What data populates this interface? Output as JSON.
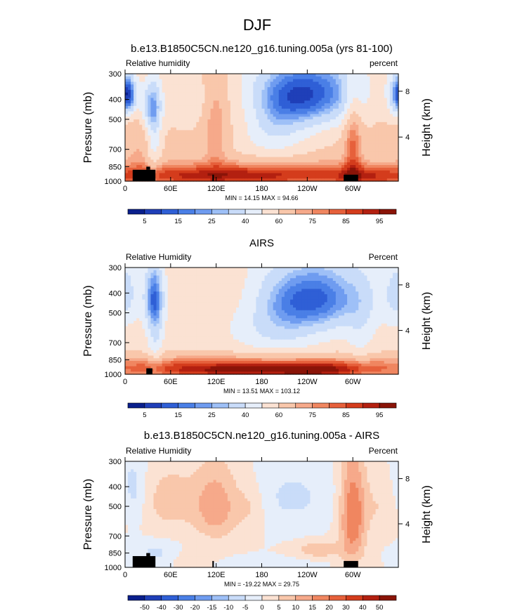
{
  "figure": {
    "title": "DJF"
  },
  "chart_data": [
    {
      "type": "contour",
      "title": "b.e13.B1850C5CN.ne120_g16.tuning.005a (yrs 81-100)",
      "left_label": "Relative humidity",
      "right_label": "percent",
      "ylabel": "Pressure (mb)",
      "ylabel_right": "Height (km)",
      "xlabel": "",
      "x_ticks": [
        "0",
        "60E",
        "120E",
        "180",
        "120W",
        "60W"
      ],
      "x_tick_lons": [
        0,
        60,
        120,
        180,
        240,
        300
      ],
      "xlim": [
        0,
        360
      ],
      "y_ticks": [
        "300",
        "400",
        "500",
        "700",
        "850",
        "1000"
      ],
      "y_tick_values": [
        300,
        400,
        500,
        700,
        850,
        1000
      ],
      "ylim": [
        1000,
        300
      ],
      "height_ticks": [
        "8",
        "4"
      ],
      "height_tick_pressures": [
        365,
        610
      ],
      "stats": "MIN = 14.15  MAX = 94.66",
      "min": 14.15,
      "max": 94.66,
      "colorbar": {
        "labels": [
          "5",
          "15",
          "25",
          "40",
          "60",
          "75",
          "85",
          "95"
        ],
        "label_positions": [
          1,
          3,
          5,
          7,
          9,
          11,
          13,
          15
        ],
        "colors": [
          "#0a1f8c",
          "#1f3fb8",
          "#2f5fd6",
          "#4a7fe6",
          "#6f9cf0",
          "#9ec0f7",
          "#c9dcf9",
          "#e6eefa",
          "#fbe2d3",
          "#f9c7ab",
          "#f6a98a",
          "#f08660",
          "#e6603b",
          "#d43c1c",
          "#b32010",
          "#8a1408"
        ]
      },
      "field": {
        "base": 62,
        "blobs": [
          {
            "lon": 5,
            "p": 380,
            "sx": 8,
            "sp": 60,
            "a": -28
          },
          {
            "lon": 35,
            "p": 430,
            "sx": 10,
            "sp": 90,
            "a": -32
          },
          {
            "lon": 38,
            "p": 640,
            "sx": 7,
            "sp": 200,
            "a": -18
          },
          {
            "lon": 20,
            "p": 650,
            "sx": 14,
            "sp": 200,
            "a": 8
          },
          {
            "lon": 80,
            "p": 400,
            "sx": 20,
            "sp": 90,
            "a": -10
          },
          {
            "lon": 120,
            "p": 520,
            "sx": 12,
            "sp": 220,
            "a": 16
          },
          {
            "lon": 160,
            "p": 450,
            "sx": 20,
            "sp": 100,
            "a": 8
          },
          {
            "lon": 240,
            "p": 370,
            "sx": 55,
            "sp": 110,
            "a": -50
          },
          {
            "lon": 195,
            "p": 560,
            "sx": 35,
            "sp": 140,
            "a": -20
          },
          {
            "lon": 300,
            "p": 640,
            "sx": 8,
            "sp": 260,
            "a": 20
          },
          {
            "lon": 330,
            "p": 420,
            "sx": 20,
            "sp": 100,
            "a": 5
          },
          {
            "lon": 360,
            "p": 380,
            "sx": 10,
            "sp": 70,
            "a": -30
          },
          {
            "lon": 180,
            "p": 920,
            "sx": 200,
            "sp": 90,
            "a": 24
          },
          {
            "lon": 120,
            "p": 960,
            "sx": 80,
            "sp": 60,
            "a": 10
          },
          {
            "lon": 320,
            "p": 960,
            "sx": 40,
            "sp": 60,
            "a": 10
          }
        ]
      },
      "topography": [
        [
          10,
          880,
          40,
          1000
        ],
        [
          28,
          850,
          33,
          880
        ],
        [
          115,
          930,
          117,
          1000
        ],
        [
          288,
          930,
          307,
          1000
        ]
      ]
    },
    {
      "type": "contour",
      "title": "AIRS",
      "left_label": "Relative Humidity",
      "right_label": "Percent",
      "ylabel": "Pressure (mb)",
      "ylabel_right": "Height (km)",
      "xlabel": "",
      "x_ticks": [
        "0",
        "60E",
        "120E",
        "180",
        "120W",
        "60W"
      ],
      "x_tick_lons": [
        0,
        60,
        120,
        180,
        240,
        300
      ],
      "xlim": [
        0,
        360
      ],
      "y_ticks": [
        "300",
        "400",
        "500",
        "700",
        "850",
        "1000"
      ],
      "y_tick_values": [
        300,
        400,
        500,
        700,
        850,
        1000
      ],
      "ylim": [
        1000,
        300
      ],
      "height_ticks": [
        "8",
        "4"
      ],
      "height_tick_pressures": [
        365,
        610
      ],
      "stats": "MIN = 13.51  MAX = 103.12",
      "min": 13.51,
      "max": 103.12,
      "colorbar": {
        "labels": [
          "5",
          "15",
          "25",
          "40",
          "60",
          "75",
          "85",
          "95"
        ],
        "label_positions": [
          1,
          3,
          5,
          7,
          9,
          11,
          13,
          15
        ],
        "colors": [
          "#0a1f8c",
          "#1f3fb8",
          "#2f5fd6",
          "#4a7fe6",
          "#6f9cf0",
          "#9ec0f7",
          "#c9dcf9",
          "#e6eefa",
          "#fbe2d3",
          "#f9c7ab",
          "#f6a98a",
          "#f08660",
          "#e6603b",
          "#d43c1c",
          "#b32010",
          "#8a1408"
        ]
      },
      "field": {
        "base": 55,
        "blobs": [
          {
            "lon": 38,
            "p": 420,
            "sx": 9,
            "sp": 110,
            "a": -35
          },
          {
            "lon": 40,
            "p": 650,
            "sx": 7,
            "sp": 200,
            "a": -15
          },
          {
            "lon": 100,
            "p": 450,
            "sx": 20,
            "sp": 100,
            "a": 5
          },
          {
            "lon": 160,
            "p": 430,
            "sx": 20,
            "sp": 90,
            "a": 5
          },
          {
            "lon": 250,
            "p": 420,
            "sx": 50,
            "sp": 120,
            "a": -40
          },
          {
            "lon": 200,
            "p": 600,
            "sx": 40,
            "sp": 150,
            "a": -15
          },
          {
            "lon": 310,
            "p": 620,
            "sx": 12,
            "sp": 200,
            "a": -8
          },
          {
            "lon": 360,
            "p": 400,
            "sx": 12,
            "sp": 100,
            "a": -18
          },
          {
            "lon": 170,
            "p": 930,
            "sx": 200,
            "sp": 90,
            "a": 35
          },
          {
            "lon": 250,
            "p": 960,
            "sx": 40,
            "sp": 50,
            "a": 15
          },
          {
            "lon": 140,
            "p": 960,
            "sx": 60,
            "sp": 40,
            "a": 10
          }
        ]
      },
      "topography": [
        [
          28,
          935,
          36,
          1000
        ]
      ]
    },
    {
      "type": "contour",
      "title": "b.e13.B1850C5CN.ne120_g16.tuning.005a - AIRS",
      "left_label": "Relative Humidity",
      "right_label": "Percent",
      "ylabel": "Pressure (mb)",
      "ylabel_right": "Height (km)",
      "xlabel": "",
      "x_ticks": [
        "0",
        "60E",
        "120E",
        "180",
        "120W",
        "60W"
      ],
      "x_tick_lons": [
        0,
        60,
        120,
        180,
        240,
        300
      ],
      "xlim": [
        0,
        360
      ],
      "y_ticks": [
        "300",
        "400",
        "500",
        "700",
        "850",
        "1000"
      ],
      "y_tick_values": [
        300,
        400,
        500,
        700,
        850,
        1000
      ],
      "ylim": [
        1000,
        300
      ],
      "height_ticks": [
        "8",
        "4"
      ],
      "height_tick_pressures": [
        365,
        610
      ],
      "stats": "MIN = -19.22  MAX = 29.75",
      "min": -19.22,
      "max": 29.75,
      "colorbar": {
        "labels": [
          "-50",
          "-40",
          "-30",
          "-20",
          "-15",
          "-10",
          "-5",
          "0",
          "5",
          "10",
          "15",
          "20",
          "30",
          "40",
          "50"
        ],
        "label_positions": [
          1,
          2,
          3,
          4,
          5,
          6,
          7,
          8,
          9,
          10,
          11,
          12,
          13,
          14,
          15
        ],
        "colors": [
          "#0a1f8c",
          "#1f3fb8",
          "#2f5fd6",
          "#4a7fe6",
          "#6f9cf0",
          "#9ec0f7",
          "#c9dcf9",
          "#e6eefa",
          "#fbe2d3",
          "#f9c7ab",
          "#f6a98a",
          "#f08660",
          "#e6603b",
          "#d43c1c",
          "#b32010",
          "#8a1408"
        ]
      },
      "field": {
        "base": 0,
        "blobs": [
          {
            "lon": 10,
            "p": 420,
            "sx": 12,
            "sp": 120,
            "a": -8
          },
          {
            "lon": 60,
            "p": 470,
            "sx": 25,
            "sp": 120,
            "a": 8
          },
          {
            "lon": 120,
            "p": 500,
            "sx": 20,
            "sp": 150,
            "a": 14
          },
          {
            "lon": 165,
            "p": 500,
            "sx": 15,
            "sp": 100,
            "a": 6
          },
          {
            "lon": 220,
            "p": 450,
            "sx": 40,
            "sp": 120,
            "a": -6
          },
          {
            "lon": 300,
            "p": 560,
            "sx": 12,
            "sp": 250,
            "a": 20
          },
          {
            "lon": 255,
            "p": 820,
            "sx": 20,
            "sp": 50,
            "a": 10
          },
          {
            "lon": 40,
            "p": 850,
            "sx": 20,
            "sp": 70,
            "a": -6
          },
          {
            "lon": 340,
            "p": 500,
            "sx": 20,
            "sp": 100,
            "a": 5
          },
          {
            "lon": 160,
            "p": 950,
            "sx": 50,
            "sp": 40,
            "a": -4
          },
          {
            "lon": 95,
            "p": 920,
            "sx": 20,
            "sp": 60,
            "a": 6
          }
        ]
      },
      "topography": [
        [
          10,
          880,
          40,
          1000
        ],
        [
          28,
          850,
          33,
          880
        ],
        [
          115,
          930,
          117,
          1000
        ],
        [
          288,
          930,
          307,
          1000
        ]
      ]
    }
  ]
}
